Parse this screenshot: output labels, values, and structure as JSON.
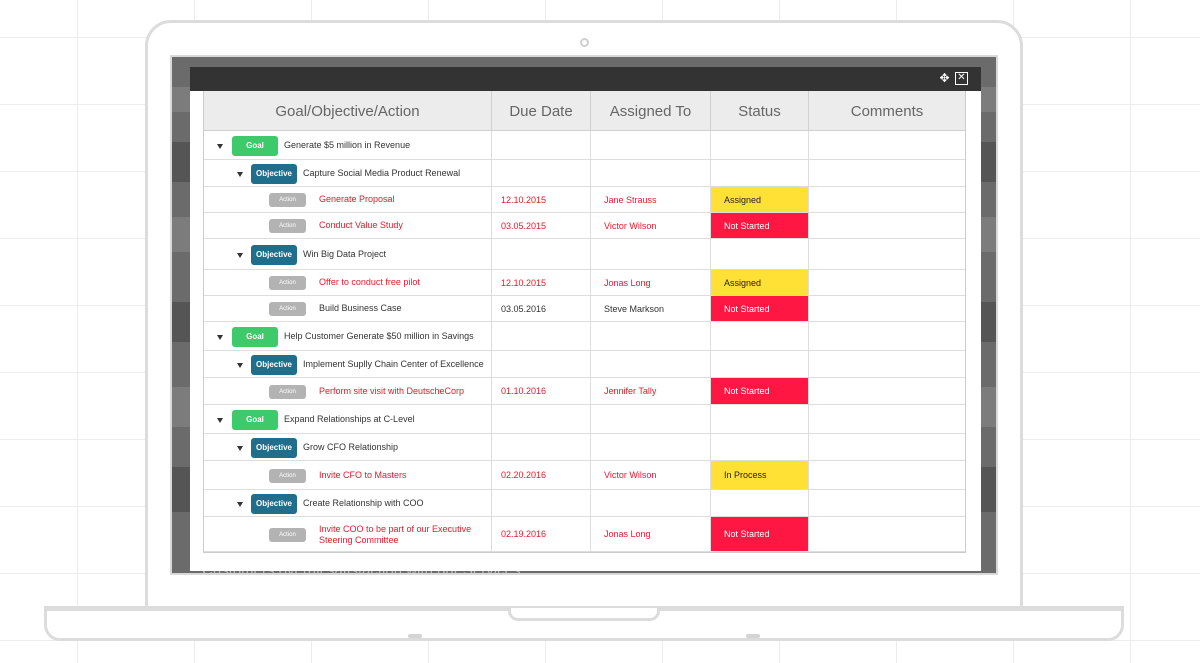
{
  "behind_text": "Customers overall satisfaction with our Services",
  "toolbar": {
    "expand_icon": "expand-icon",
    "close_icon": "close-icon"
  },
  "columns": [
    "Goal/Objective/Action",
    "Due Date",
    "Assigned To",
    "Status",
    "Comments"
  ],
  "tags": {
    "goal": "Goal",
    "objective": "Objective",
    "action": "Action"
  },
  "rows": [
    {
      "type": "goal",
      "text": "Generate $5 million in Revenue",
      "due": "",
      "assigned": "",
      "status": "",
      "style": ""
    },
    {
      "type": "objective",
      "text": "Capture Social Media Product Renewal",
      "due": "",
      "assigned": "",
      "status": "",
      "style": ""
    },
    {
      "type": "action",
      "text": "Generate Proposal",
      "due": "12.10.2015",
      "assigned": "Jane Strauss",
      "status": "Assigned",
      "style": "red"
    },
    {
      "type": "action",
      "text": "Conduct Value Study",
      "due": "03.05.2015",
      "assigned": "Victor Wilson",
      "status": "Not Started",
      "style": "red"
    },
    {
      "type": "objective",
      "text": "Win Big Data Project",
      "due": "",
      "assigned": "",
      "status": "",
      "style": ""
    },
    {
      "type": "action",
      "text": "Offer to conduct free pilot",
      "due": "12.10.2015",
      "assigned": "Jonas Long",
      "status": "Assigned",
      "style": "red"
    },
    {
      "type": "action",
      "text": "Build Business Case",
      "due": "03.05.2016",
      "assigned": "Steve Markson",
      "status": "Not Started",
      "style": "dark"
    },
    {
      "type": "goal",
      "text": "Help Customer Generate $50 million in Savings",
      "due": "",
      "assigned": "",
      "status": "",
      "style": ""
    },
    {
      "type": "objective",
      "text": "Implement Suplly Chain Center of Excellence",
      "due": "",
      "assigned": "",
      "status": "",
      "style": ""
    },
    {
      "type": "action",
      "text": "Perform site visit with DeutscheCorp",
      "due": "01.10.2016",
      "assigned": "Jennifer Tally",
      "status": "Not Started",
      "style": "red"
    },
    {
      "type": "goal",
      "text": "Expand Relationships at C-Level",
      "due": "",
      "assigned": "",
      "status": "",
      "style": ""
    },
    {
      "type": "objective",
      "text": "Grow CFO Relationship",
      "due": "",
      "assigned": "",
      "status": "",
      "style": ""
    },
    {
      "type": "action",
      "text": "Invite CFO to Masters",
      "due": "02.20.2016",
      "assigned": "Victor Wilson",
      "status": "In Process",
      "style": "red"
    },
    {
      "type": "objective",
      "text": "Create Relationship with COO",
      "due": "",
      "assigned": "",
      "status": "",
      "style": ""
    },
    {
      "type": "action",
      "text": "Invite COO to be part of our Executive Steering Committee",
      "due": "02.19.2016",
      "assigned": "Jonas Long",
      "status": "Not Started",
      "style": "red"
    }
  ]
}
